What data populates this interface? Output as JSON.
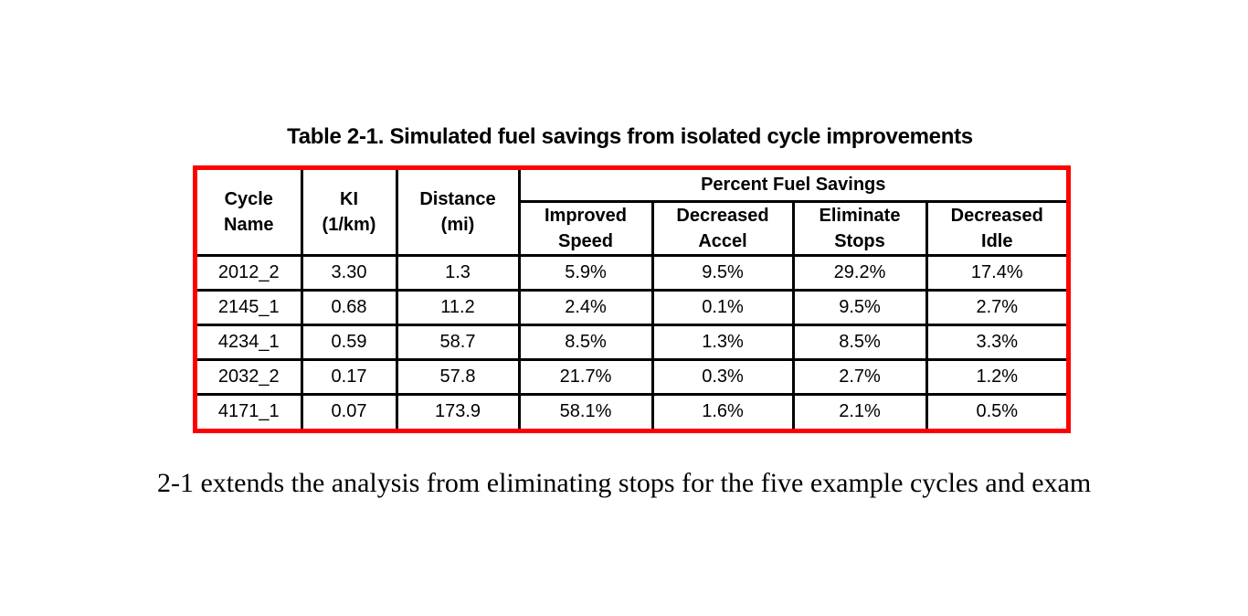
{
  "caption": "Table 2-1. Simulated fuel savings from isolated cycle improvements",
  "table": {
    "border_color": "#ff0000",
    "grid_color": "#000000",
    "headers": {
      "cycle_name": "Cycle\nName",
      "ki": "KI\n(1/km)",
      "distance": "Distance\n(mi)",
      "group": "Percent Fuel Savings",
      "sub": [
        "Improved\nSpeed",
        "Decreased\nAccel",
        "Eliminate\nStops",
        "Decreased\nIdle"
      ]
    },
    "rows": [
      [
        "2012_2",
        "3.30",
        "1.3",
        "5.9%",
        "9.5%",
        "29.2%",
        "17.4%"
      ],
      [
        "2145_1",
        "0.68",
        "11.2",
        "2.4%",
        "0.1%",
        "9.5%",
        "2.7%"
      ],
      [
        "4234_1",
        "0.59",
        "58.7",
        "8.5%",
        "1.3%",
        "8.5%",
        "3.3%"
      ],
      [
        "2032_2",
        "0.17",
        "57.8",
        "21.7%",
        "0.3%",
        "2.7%",
        "1.2%"
      ],
      [
        "4171_1",
        "0.07",
        "173.9",
        "58.1%",
        "1.6%",
        "2.1%",
        "0.5%"
      ]
    ]
  },
  "body_text": "2-1 extends the analysis from eliminating stops for the five example cycles and exam"
}
